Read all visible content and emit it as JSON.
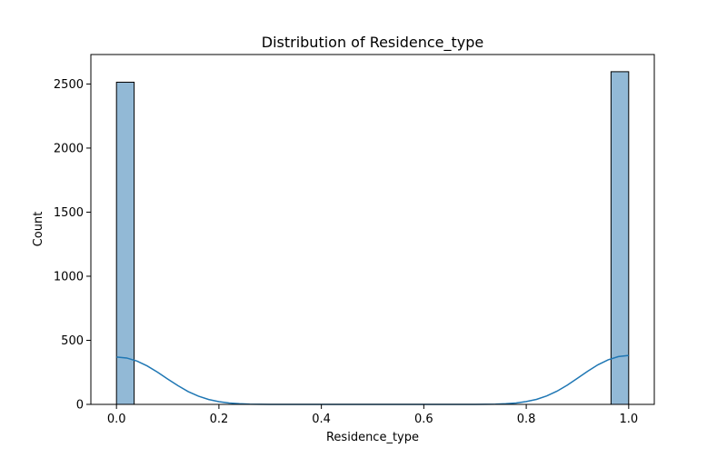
{
  "chart_data": {
    "type": "bar",
    "title": "Distribution of Residence_type",
    "xlabel": "Residence_type",
    "ylabel": "Count",
    "xlim": [
      -0.05,
      1.05
    ],
    "ylim": [
      0,
      2730
    ],
    "xticks": [
      0.0,
      0.2,
      0.4,
      0.6,
      0.8,
      1.0
    ],
    "xtick_labels": [
      "0.0",
      "0.2",
      "0.4",
      "0.6",
      "0.8",
      "1.0"
    ],
    "yticks": [
      0,
      500,
      1000,
      1500,
      2000,
      2500
    ],
    "ytick_labels": [
      "0",
      "500",
      "1000",
      "1500",
      "2000",
      "2500"
    ],
    "grid": false,
    "bins": [
      {
        "x0": 0.0,
        "x1": 0.0345,
        "count": 2514
      },
      {
        "x0": 0.9655,
        "x1": 1.0,
        "count": 2596
      }
    ],
    "kde": {
      "x": [
        0.0,
        0.02,
        0.04,
        0.06,
        0.08,
        0.1,
        0.12,
        0.14,
        0.16,
        0.18,
        0.2,
        0.22,
        0.24,
        0.26,
        0.28,
        0.3,
        0.35,
        0.4,
        0.45,
        0.5,
        0.55,
        0.6,
        0.65,
        0.7,
        0.72,
        0.74,
        0.76,
        0.78,
        0.8,
        0.82,
        0.84,
        0.86,
        0.88,
        0.9,
        0.92,
        0.94,
        0.96,
        0.98,
        1.0
      ],
      "y": [
        370,
        362,
        338,
        300,
        252,
        198,
        146,
        100,
        64,
        38,
        21,
        11,
        5,
        2,
        1,
        0,
        0,
        0,
        0,
        0,
        0,
        0,
        0,
        0,
        1,
        2,
        5,
        11,
        22,
        39,
        66,
        103,
        150,
        204,
        259,
        309,
        348,
        373,
        382
      ]
    },
    "colors": {
      "bar_fill": "#92b9d6",
      "bar_edge": "#000000",
      "kde_line": "#1f77b4"
    }
  }
}
